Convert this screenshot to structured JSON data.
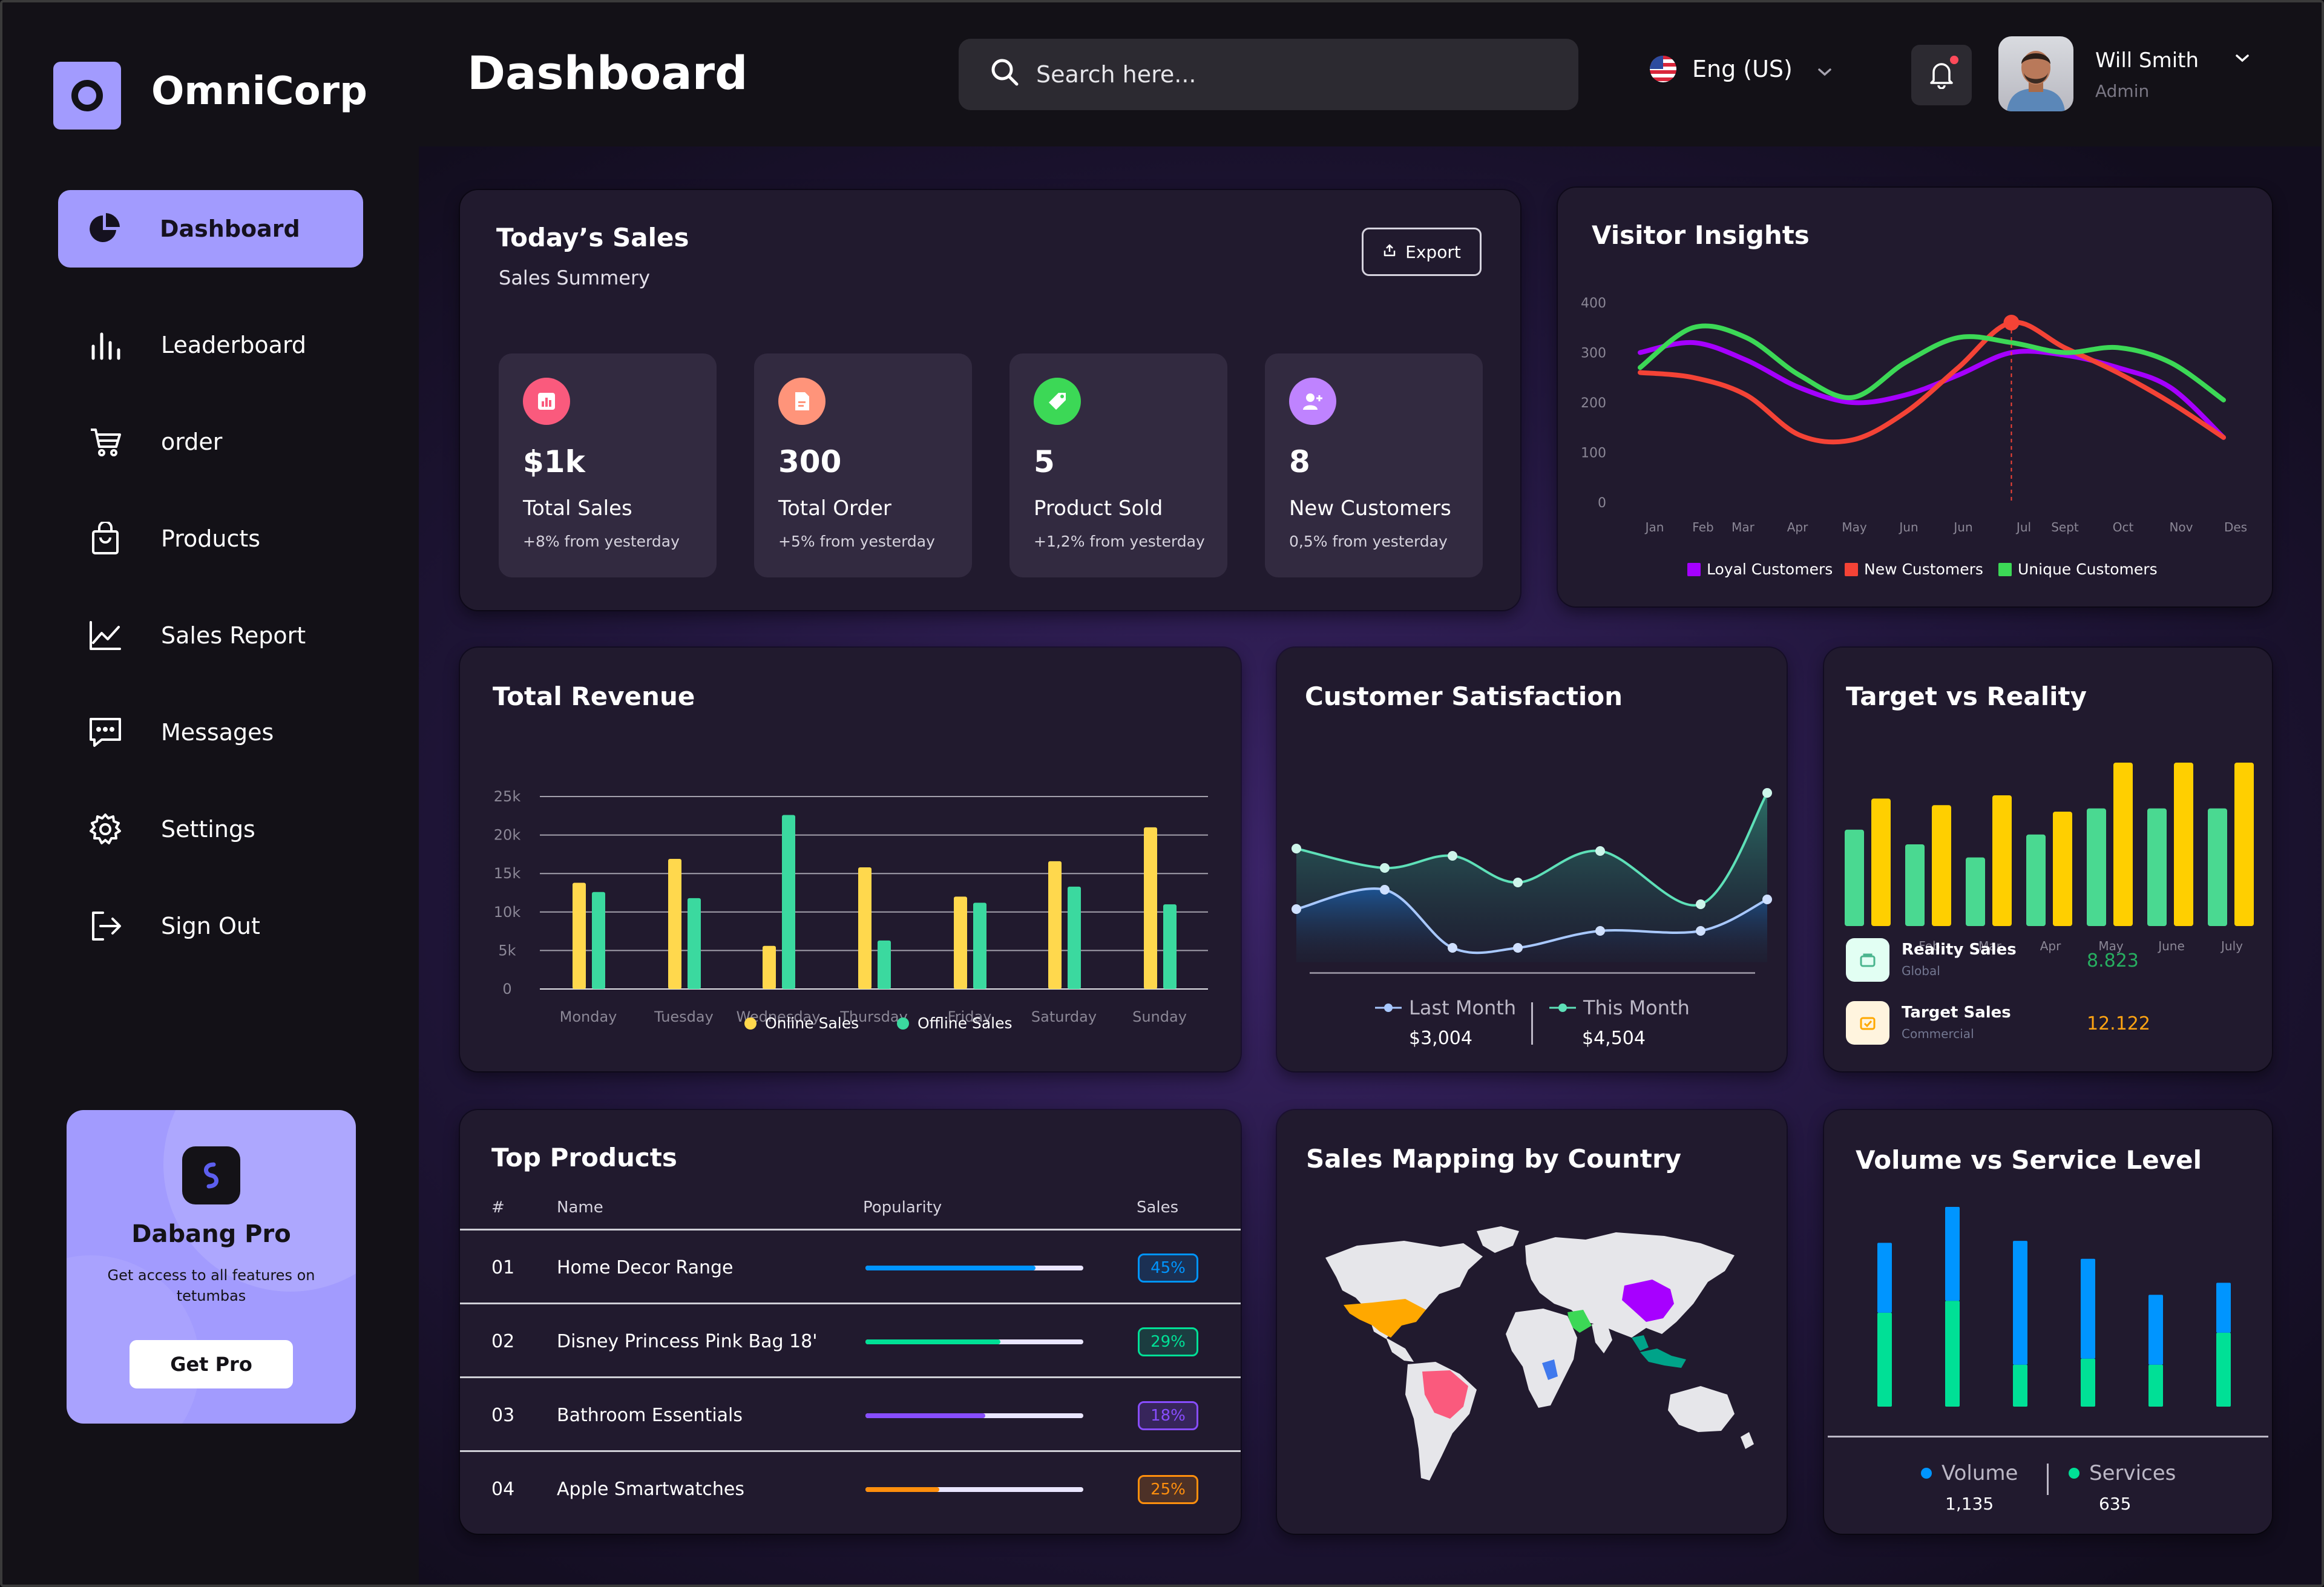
{
  "brand": {
    "name": "OmniCorp"
  },
  "sidebar": {
    "items": [
      {
        "label": "Dashboard",
        "icon": "pie-chart-icon",
        "active": true
      },
      {
        "label": "Leaderboard",
        "icon": "bar-chart-icon"
      },
      {
        "label": "order",
        "icon": "cart-icon"
      },
      {
        "label": "Products",
        "icon": "bag-icon"
      },
      {
        "label": "Sales Report",
        "icon": "line-chart-icon"
      },
      {
        "label": "Messages",
        "icon": "message-icon"
      },
      {
        "label": "Settings",
        "icon": "gear-icon"
      },
      {
        "label": "Sign Out",
        "icon": "sign-out-icon"
      }
    ],
    "promo": {
      "title": "Dabang Pro",
      "text": "Get access to all features on tetumbas",
      "button": "Get Pro"
    }
  },
  "header": {
    "title": "Dashboard",
    "search_placeholder": "Search here...",
    "language": "Eng (US)",
    "user_name": "Will Smith",
    "user_role": "Admin"
  },
  "colors": {
    "accent": "#a29bfe",
    "yellow": "#ffd84d",
    "green": "#3bd99f",
    "purple": "#a500ff",
    "red": "#f44336",
    "lime": "#3cd856",
    "blue": "#0095ff"
  },
  "todays_sales": {
    "title": "Today’s Sales",
    "subtitle": "Sales Summery",
    "export_label": "Export",
    "stats": [
      {
        "value": "$1k",
        "label": "Total Sales",
        "sub": "+8% from yesterday",
        "color": "#fa5a7d",
        "icon": "chart-icon"
      },
      {
        "value": "300",
        "label": "Total Order",
        "sub": "+5% from yesterday",
        "color": "#ff947a",
        "icon": "document-icon"
      },
      {
        "value": "5",
        "label": "Product Sold",
        "sub": "+1,2% from yesterday",
        "color": "#3cd856",
        "icon": "tag-icon"
      },
      {
        "value": "8",
        "label": "New Customers",
        "sub": "0,5% from yesterday",
        "color": "#bf83ff",
        "icon": "add-user-icon"
      }
    ]
  },
  "visitor_insights": {
    "title": "Visitor Insights",
    "y_ticks": [
      "400",
      "300",
      "200",
      "100",
      "0"
    ],
    "x_ticks": [
      "Jan",
      "Feb",
      "Mar",
      "Apr",
      "May",
      "Jun",
      "Jun",
      "Jul",
      "Sept",
      "Oct",
      "Nov",
      "Des"
    ],
    "legend": [
      "Loyal Customers",
      "New Customers",
      "Unique Customers"
    ]
  },
  "total_revenue": {
    "title": "Total Revenue",
    "y_ticks": [
      "25k",
      "20k",
      "15k",
      "10k",
      "5k",
      "0"
    ],
    "legend": [
      "Online Sales",
      "Offline Sales"
    ]
  },
  "customer_satisfaction": {
    "title": "Customer Satisfaction",
    "last_month_label": "Last Month",
    "last_month_value": "$3,004",
    "this_month_label": "This Month",
    "this_month_value": "$4,504"
  },
  "target_vs_reality": {
    "title": "Target vs Reality",
    "reality_label": "Reality Sales",
    "reality_sub": "Global",
    "reality_value": "8.823",
    "target_label": "Target Sales",
    "target_sub": "Commercial",
    "target_value": "12.122"
  },
  "top_products": {
    "title": "Top Products",
    "headers": [
      "#",
      "Name",
      "Popularity",
      "Sales"
    ],
    "rows": [
      {
        "num": "01",
        "name": "Home Decor Range",
        "pct": "45%",
        "fill": 0.78,
        "color": "#0095ff",
        "bg": "rgba(0,149,255,0.18)"
      },
      {
        "num": "02",
        "name": "Disney Princess Pink Bag 18'",
        "pct": "29%",
        "fill": 0.62,
        "color": "#00e096",
        "bg": "rgba(0,224,150,0.18)"
      },
      {
        "num": "03",
        "name": "Bathroom Essentials",
        "pct": "18%",
        "fill": 0.55,
        "color": "#884dff",
        "bg": "rgba(136,77,255,0.22)"
      },
      {
        "num": "04",
        "name": "Apple Smartwatches",
        "pct": "25%",
        "fill": 0.34,
        "color": "#ff8f0d",
        "bg": "rgba(255,143,13,0.2)"
      }
    ]
  },
  "sales_mapping": {
    "title": "Sales Mapping by Country"
  },
  "volume_service": {
    "title": "Volume vs Service Level",
    "volume_label": "Volume",
    "volume_value": "1,135",
    "services_label": "Services",
    "services_value": "635"
  },
  "chart_data": [
    {
      "type": "line",
      "title": "Visitor Insights",
      "categories": [
        "Jan",
        "Feb",
        "Mar",
        "Apr",
        "May",
        "Jun",
        "Jun",
        "Jul",
        "Sept",
        "Oct",
        "Nov",
        "Des"
      ],
      "ylim": [
        0,
        400
      ],
      "series": [
        {
          "name": "Loyal Customers",
          "color": "#a500ff",
          "values": [
            300,
            320,
            285,
            230,
            200,
            215,
            255,
            300,
            295,
            270,
            230,
            130
          ]
        },
        {
          "name": "New Customers",
          "color": "#f44336",
          "values": [
            260,
            250,
            215,
            135,
            125,
            180,
            270,
            360,
            310,
            260,
            200,
            130
          ]
        },
        {
          "name": "Unique Customers",
          "color": "#3cd856",
          "values": [
            270,
            350,
            330,
            255,
            210,
            280,
            330,
            320,
            300,
            310,
            280,
            205
          ]
        }
      ]
    },
    {
      "type": "bar",
      "title": "Total Revenue",
      "categories": [
        "Monday",
        "Tuesday",
        "Wednesday",
        "Thursday",
        "Friday",
        "Saturday",
        "Sunday"
      ],
      "ylim": [
        0,
        25000
      ],
      "series": [
        {
          "name": "Online Sales",
          "color": "#ffd84d",
          "values": [
            13800,
            16900,
            5600,
            15800,
            12000,
            16600,
            21000
          ]
        },
        {
          "name": "Offline Sales",
          "color": "#3bd99f",
          "values": [
            12600,
            11800,
            22600,
            6300,
            11200,
            13300,
            11000
          ]
        }
      ]
    },
    {
      "type": "area",
      "title": "Customer Satisfaction",
      "x": [
        0,
        1,
        2,
        3,
        4,
        5,
        6
      ],
      "series": [
        {
          "name": "Last Month",
          "color": "#3bd99f",
          "values": [
            4.7,
            3.9,
            4.4,
            3.3,
            4.6,
            2.4,
            7.0
          ]
        },
        {
          "name": "This Month",
          "color": "#0095ff",
          "values": [
            2.2,
            3.0,
            0.6,
            0.6,
            1.3,
            1.3,
            2.6
          ]
        }
      ]
    },
    {
      "type": "bar",
      "title": "Target vs Reality",
      "categories": [
        "Jan",
        "Feb",
        "Mar",
        "Apr",
        "May",
        "June",
        "July"
      ],
      "series": [
        {
          "name": "Reality Sales",
          "color": "#4ad991",
          "values": [
            59,
            50,
            42,
            56,
            72,
            72,
            72
          ]
        },
        {
          "name": "Target Sales",
          "color": "#ffcf00",
          "values": [
            78,
            74,
            80,
            70,
            100,
            100,
            100
          ]
        }
      ]
    },
    {
      "type": "bar",
      "title": "Volume vs Service Level",
      "categories": [
        "1",
        "2",
        "3",
        "4",
        "5",
        "6"
      ],
      "series": [
        {
          "name": "Services",
          "color": "#00e096",
          "values": [
            47,
            53,
            21,
            24,
            21,
            37
          ]
        },
        {
          "name": "Volume",
          "color": "#0095ff",
          "values": [
            35,
            47,
            62,
            50,
            35,
            25
          ]
        }
      ]
    }
  ]
}
